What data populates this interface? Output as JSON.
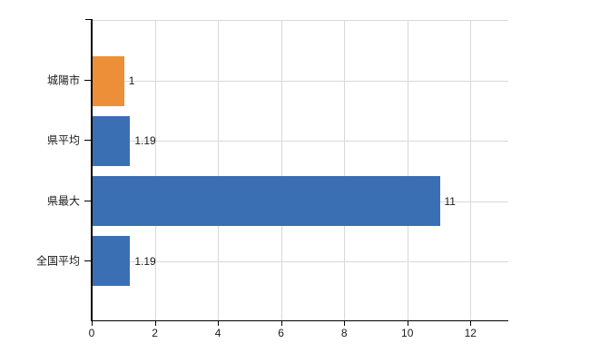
{
  "chart_data": {
    "type": "bar",
    "orientation": "horizontal",
    "title": "",
    "xlabel": "",
    "ylabel": "",
    "categories": [
      "城陽市",
      "県平均",
      "県最大",
      "全国平均"
    ],
    "values": [
      1,
      1.19,
      11,
      1.19
    ],
    "value_labels": [
      "1",
      "1.19",
      "11",
      "1.19"
    ],
    "bar_colors": [
      "#ec8f38",
      "#3b6fb4",
      "#3b6fb4",
      "#3b6fb4"
    ],
    "x_ticks": [
      0,
      2,
      4,
      6,
      8,
      10,
      12
    ],
    "xlim": [
      0,
      13.2
    ],
    "grid": true,
    "legend": "none",
    "grid_color": "#d9d9d9",
    "axis_color": "#000000",
    "text_color": "#1a1a1a",
    "background_color": "#ffffff"
  }
}
